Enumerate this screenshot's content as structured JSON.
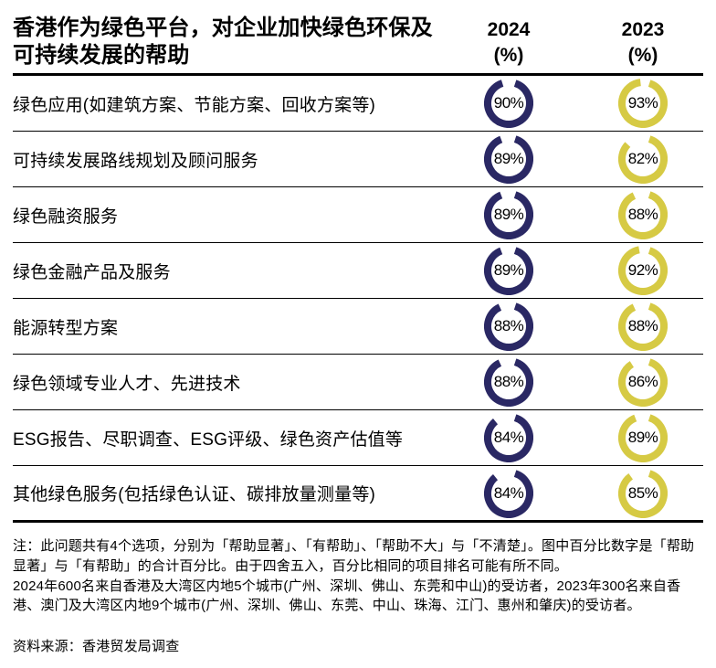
{
  "header": {
    "title": "香港作为绿色平台，对企业加快绿色环保及可持续发展的帮助",
    "columns": [
      {
        "year": "2024",
        "unit": "(%)"
      },
      {
        "year": "2023",
        "unit": "(%)"
      }
    ]
  },
  "colors": {
    "series_2024": "#2a2864",
    "series_2023": "#d6ca44",
    "text": "#000000",
    "rule": "#000000"
  },
  "chart_data": {
    "type": "table",
    "mark": "donut",
    "title": "香港作为绿色平台，对企业加快绿色环保及可持续发展的帮助",
    "value_format": "percent",
    "categories": [
      "绿色应用(如建筑方案、节能方案、回收方案等)",
      "可持续发展路线规划及顾问服务",
      "绿色融资服务",
      "绿色金融产品及服务",
      "能源转型方案",
      "绿色领域专业人才、先进技术",
      "ESG报告、尽职调查、ESG评级、绿色资产估值等",
      "其他绿色服务(包括绿色认证、碳排放量测量等)"
    ],
    "series": [
      {
        "name": "2024 (%)",
        "year": "2024",
        "color": "#2a2864",
        "values": [
          90,
          89,
          89,
          89,
          88,
          88,
          84,
          84
        ]
      },
      {
        "name": "2023 (%)",
        "year": "2023",
        "color": "#d6ca44",
        "values": [
          93,
          82,
          88,
          92,
          88,
          86,
          89,
          85
        ]
      }
    ]
  },
  "notes": {
    "note": "注：此问题共有4个选项，分别为「帮助显著」、「有帮助」、「帮助不大」与「不清楚」。图中百分比数字是「帮助显著」与「有帮助」的合计百分比。由于四舍五入，百分比相同的项目排名可能有所不同。",
    "respondents": "2024年600名来自香港及大湾区内地5个城市(广州、深圳、佛山、东莞和中山)的受访者，2023年300名来自香港、澳门及大湾区内地9个城市(广州、深圳、佛山、东莞、中山、珠海、江门、惠州和肇庆)的受访者。",
    "source": "资料来源：香港贸发局调查"
  }
}
